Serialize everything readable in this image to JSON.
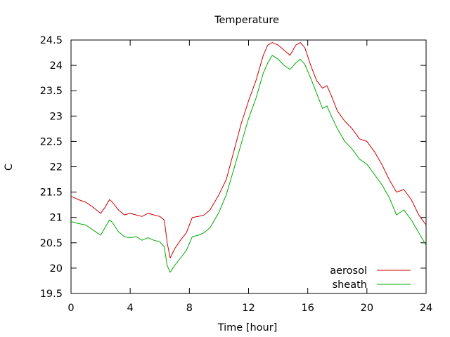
{
  "chart_data": {
    "type": "line",
    "title": "Temperature",
    "xlabel": "Time [hour]",
    "ylabel": "C",
    "xlim": [
      0,
      24
    ],
    "ylim": [
      19.5,
      24.5
    ],
    "xticks": [
      0,
      4,
      8,
      12,
      16,
      20,
      24
    ],
    "yticks": [
      19.5,
      20,
      20.5,
      21,
      21.5,
      22,
      22.5,
      23,
      23.5,
      24,
      24.5
    ],
    "xtick_labels": [
      "0",
      "4",
      "8",
      "12",
      "16",
      "20",
      "24"
    ],
    "ytick_labels": [
      "19.5",
      "20",
      "20.5",
      "21",
      "21.5",
      "22",
      "22.5",
      "23",
      "23.5",
      "24",
      "24.5"
    ],
    "grid": false,
    "legend_position": "bottom-right",
    "series": [
      {
        "name": "aerosol",
        "color": "#cc0000",
        "x": [
          0,
          0.5,
          1,
          1.5,
          2,
          2.3,
          2.6,
          2.8,
          3.2,
          3.6,
          4,
          4.4,
          4.8,
          5.2,
          5.6,
          6,
          6.3,
          6.5,
          6.7,
          7,
          7.4,
          7.8,
          8.2,
          8.6,
          9,
          9.4,
          10,
          10.5,
          11,
          11.5,
          12,
          12.5,
          13,
          13.3,
          13.6,
          14,
          14.4,
          14.8,
          15.2,
          15.5,
          15.8,
          16.2,
          16.6,
          17,
          17.3,
          17.6,
          18,
          18.5,
          19,
          19.5,
          20,
          20.5,
          21,
          21.5,
          22,
          22.5,
          23,
          23.5,
          24
        ],
        "y": [
          21.42,
          21.35,
          21.3,
          21.2,
          21.08,
          21.2,
          21.35,
          21.3,
          21.15,
          21.05,
          21.08,
          21.05,
          21.02,
          21.08,
          21.05,
          21.02,
          20.95,
          20.5,
          20.2,
          20.38,
          20.55,
          20.7,
          21.0,
          21.02,
          21.05,
          21.15,
          21.45,
          21.75,
          22.3,
          22.85,
          23.3,
          23.7,
          24.2,
          24.4,
          24.45,
          24.4,
          24.3,
          24.2,
          24.4,
          24.45,
          24.35,
          24.0,
          23.7,
          23.55,
          23.6,
          23.4,
          23.1,
          22.9,
          22.75,
          22.55,
          22.5,
          22.3,
          22.05,
          21.75,
          21.5,
          21.55,
          21.35,
          21.05,
          20.85
        ]
      },
      {
        "name": "sheath",
        "color": "#00aa00",
        "x": [
          0,
          0.5,
          1,
          1.5,
          2,
          2.3,
          2.6,
          2.8,
          3.2,
          3.6,
          4,
          4.4,
          4.8,
          5.2,
          5.6,
          6,
          6.3,
          6.5,
          6.7,
          7,
          7.4,
          7.8,
          8.2,
          8.6,
          9,
          9.4,
          10,
          10.5,
          11,
          11.5,
          12,
          12.5,
          13,
          13.3,
          13.6,
          14,
          14.4,
          14.8,
          15.2,
          15.5,
          15.8,
          16.2,
          16.6,
          17,
          17.3,
          17.6,
          18,
          18.5,
          19,
          19.5,
          20,
          20.5,
          21,
          21.5,
          22,
          22.5,
          23,
          23.5,
          24
        ],
        "y": [
          20.92,
          20.88,
          20.85,
          20.75,
          20.65,
          20.8,
          20.95,
          20.9,
          20.72,
          20.62,
          20.6,
          20.62,
          20.55,
          20.6,
          20.55,
          20.52,
          20.42,
          20.05,
          19.92,
          20.05,
          20.2,
          20.35,
          20.62,
          20.65,
          20.7,
          20.8,
          21.1,
          21.45,
          21.95,
          22.45,
          22.95,
          23.35,
          23.85,
          24.05,
          24.2,
          24.12,
          24.0,
          23.92,
          24.05,
          24.12,
          24.02,
          23.75,
          23.45,
          23.15,
          23.2,
          23.0,
          22.75,
          22.5,
          22.35,
          22.15,
          22.05,
          21.85,
          21.65,
          21.4,
          21.05,
          21.15,
          20.95,
          20.7,
          20.45
        ]
      }
    ]
  }
}
